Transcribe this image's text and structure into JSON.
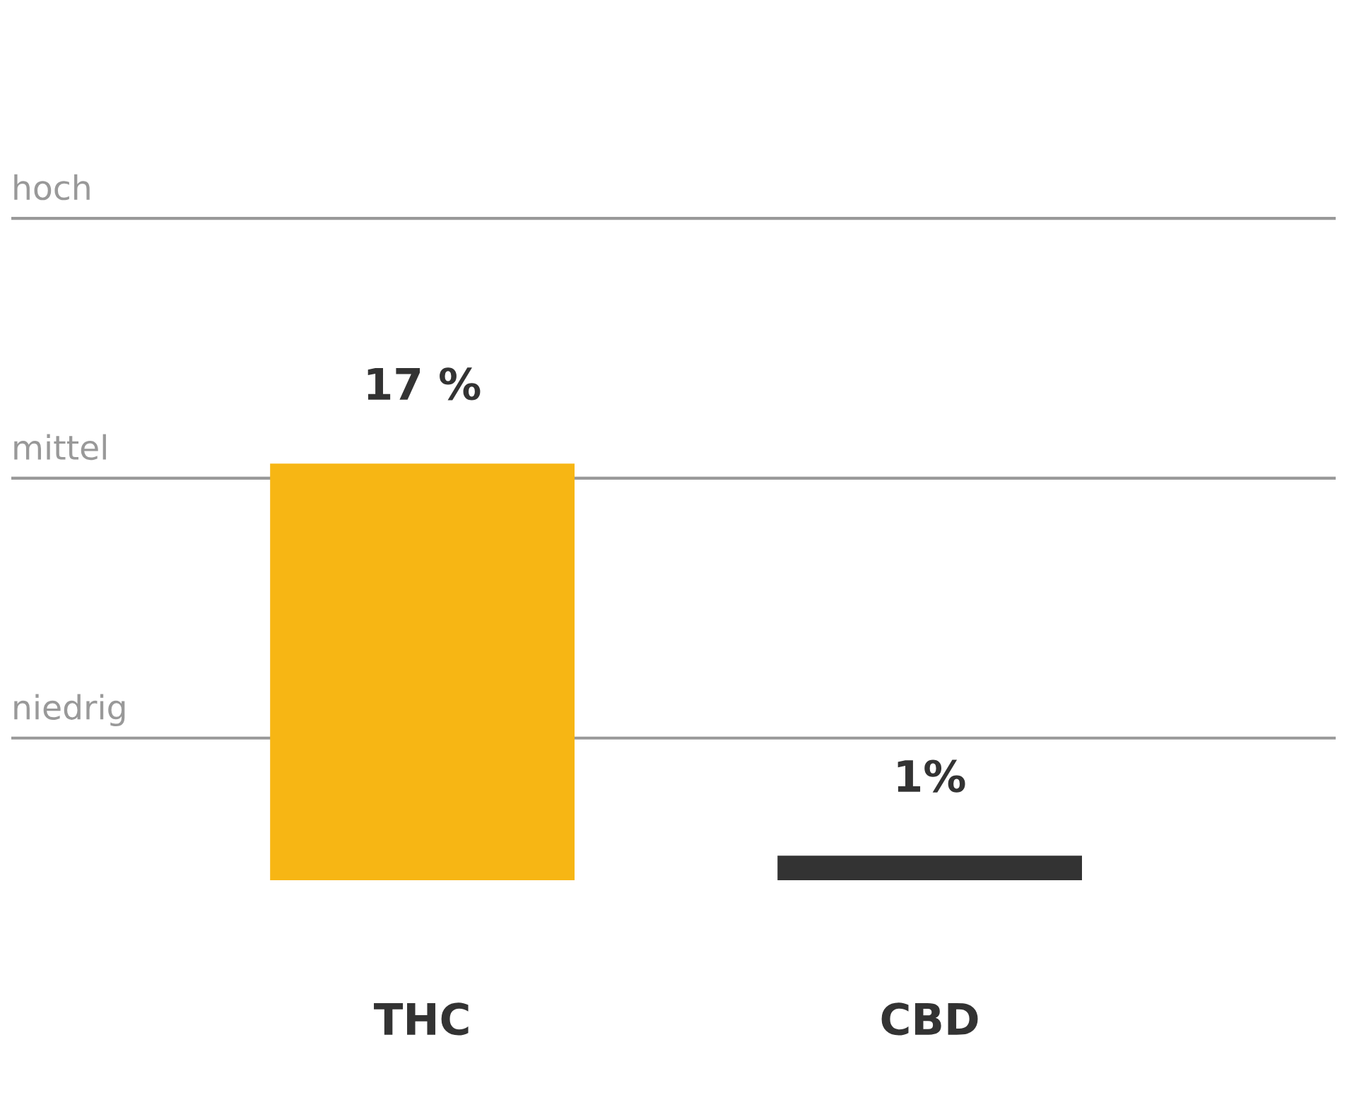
{
  "chart_data": {
    "type": "bar",
    "categories": [
      "THC",
      "CBD"
    ],
    "values": [
      17,
      1
    ],
    "colors": [
      "#f7b614",
      "#333333"
    ],
    "value_labels": [
      "17 %",
      "1%"
    ],
    "ref_lines": [
      {
        "axis": "y",
        "value": 5.8,
        "label": "niedrig",
        "color": "#999999"
      },
      {
        "axis": "y",
        "value": 16.4,
        "label": "mittel",
        "color": "#999999"
      },
      {
        "axis": "y",
        "value": 27,
        "label": "hoch",
        "color": "#999999"
      }
    ]
  }
}
